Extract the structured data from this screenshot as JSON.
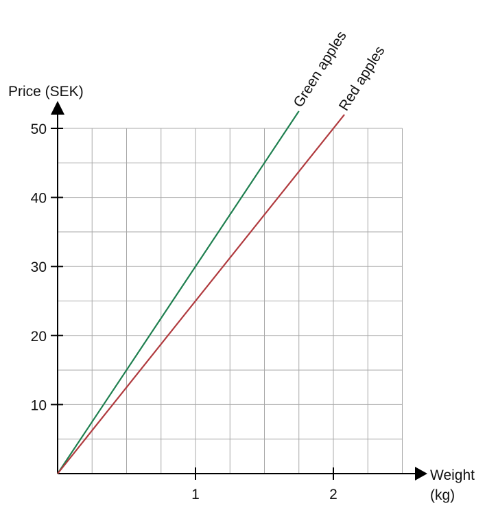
{
  "chart_data": {
    "type": "line",
    "title": "",
    "xlabel": "Weight",
    "xlabel_unit": "(kg)",
    "ylabel": "Price (SEK)",
    "xlim": [
      0,
      2.5
    ],
    "ylim": [
      0,
      50
    ],
    "x_ticks": [
      {
        "value": 1,
        "label": "1"
      },
      {
        "value": 2,
        "label": "2"
      }
    ],
    "y_ticks": [
      {
        "value": 10,
        "label": "10"
      },
      {
        "value": 20,
        "label": "20"
      },
      {
        "value": 30,
        "label": "30"
      },
      {
        "value": 40,
        "label": "40"
      },
      {
        "value": 50,
        "label": "50"
      }
    ],
    "grid": true,
    "grid_x_step": 0.25,
    "grid_y_step": 5,
    "series": [
      {
        "name": "Green apples",
        "color": "#1e7f4f",
        "points": [
          [
            0,
            0
          ],
          [
            1.75,
            52.5
          ]
        ]
      },
      {
        "name": "Red apples",
        "color": "#b03a3e",
        "points": [
          [
            0,
            0
          ],
          [
            2.08,
            52
          ]
        ]
      }
    ]
  }
}
